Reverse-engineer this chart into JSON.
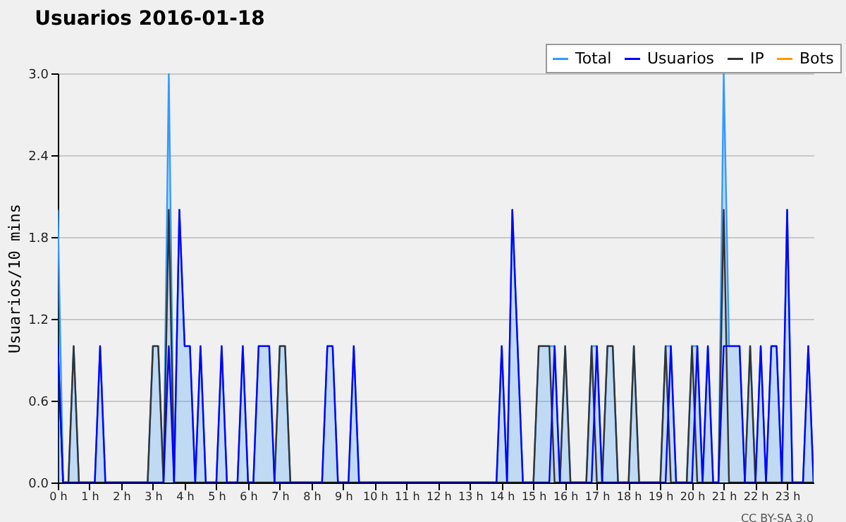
{
  "chart_data": {
    "type": "line",
    "title": "Usuarios  2016-01-18",
    "ylabel": "Usuarios/10 mins",
    "x": [
      "2016-01-18T00:00",
      "2016-01-18T00:10",
      "2016-01-18T00:20",
      "2016-01-18T00:30",
      "2016-01-18T00:40",
      "2016-01-18T00:50",
      "2016-01-18T01:00",
      "2016-01-18T01:10",
      "2016-01-18T01:20",
      "2016-01-18T01:30",
      "2016-01-18T01:40",
      "2016-01-18T01:50",
      "2016-01-18T02:00",
      "2016-01-18T02:10",
      "2016-01-18T02:20",
      "2016-01-18T02:30",
      "2016-01-18T02:40",
      "2016-01-18T02:50",
      "2016-01-18T03:00",
      "2016-01-18T03:10",
      "2016-01-18T03:20",
      "2016-01-18T03:30",
      "2016-01-18T03:40",
      "2016-01-18T03:50",
      "2016-01-18T04:00",
      "2016-01-18T04:10",
      "2016-01-18T04:20",
      "2016-01-18T04:30",
      "2016-01-18T04:40",
      "2016-01-18T04:50",
      "2016-01-18T05:00",
      "2016-01-18T05:10",
      "2016-01-18T05:20",
      "2016-01-18T05:30",
      "2016-01-18T05:40",
      "2016-01-18T05:50",
      "2016-01-18T06:00",
      "2016-01-18T06:10",
      "2016-01-18T06:20",
      "2016-01-18T06:30",
      "2016-01-18T06:40",
      "2016-01-18T06:50",
      "2016-01-18T07:00",
      "2016-01-18T07:10",
      "2016-01-18T07:20",
      "2016-01-18T07:30",
      "2016-01-18T07:40",
      "2016-01-18T07:50",
      "2016-01-18T08:00",
      "2016-01-18T08:10",
      "2016-01-18T08:20",
      "2016-01-18T08:30",
      "2016-01-18T08:40",
      "2016-01-18T08:50",
      "2016-01-18T09:00",
      "2016-01-18T09:10",
      "2016-01-18T09:20",
      "2016-01-18T09:30",
      "2016-01-18T09:40",
      "2016-01-18T09:50",
      "2016-01-18T10:00",
      "2016-01-18T10:10",
      "2016-01-18T10:20",
      "2016-01-18T10:30",
      "2016-01-18T10:40",
      "2016-01-18T10:50",
      "2016-01-18T11:00",
      "2016-01-18T11:10",
      "2016-01-18T11:20",
      "2016-01-18T11:30",
      "2016-01-18T11:40",
      "2016-01-18T11:50",
      "2016-01-18T12:00",
      "2016-01-18T12:10",
      "2016-01-18T12:20",
      "2016-01-18T12:30",
      "2016-01-18T12:40",
      "2016-01-18T12:50",
      "2016-01-18T13:00",
      "2016-01-18T13:10",
      "2016-01-18T13:20",
      "2016-01-18T13:30",
      "2016-01-18T13:40",
      "2016-01-18T13:50",
      "2016-01-18T14:00",
      "2016-01-18T14:10",
      "2016-01-18T14:20",
      "2016-01-18T14:30",
      "2016-01-18T14:40",
      "2016-01-18T14:50",
      "2016-01-18T15:00",
      "2016-01-18T15:10",
      "2016-01-18T15:20",
      "2016-01-18T15:30",
      "2016-01-18T15:40",
      "2016-01-18T15:50",
      "2016-01-18T16:00",
      "2016-01-18T16:10",
      "2016-01-18T16:20",
      "2016-01-18T16:30",
      "2016-01-18T16:40",
      "2016-01-18T16:50",
      "2016-01-18T17:00",
      "2016-01-18T17:10",
      "2016-01-18T17:20",
      "2016-01-18T17:30",
      "2016-01-18T17:40",
      "2016-01-18T17:50",
      "2016-01-18T18:00",
      "2016-01-18T18:10",
      "2016-01-18T18:20",
      "2016-01-18T18:30",
      "2016-01-18T18:40",
      "2016-01-18T18:50",
      "2016-01-18T19:00",
      "2016-01-18T19:10",
      "2016-01-18T19:20",
      "2016-01-18T19:30",
      "2016-01-18T19:40",
      "2016-01-18T19:50",
      "2016-01-18T20:00",
      "2016-01-18T20:10",
      "2016-01-18T20:20",
      "2016-01-18T20:30",
      "2016-01-18T20:40",
      "2016-01-18T20:50",
      "2016-01-18T21:00",
      "2016-01-18T21:10",
      "2016-01-18T21:20",
      "2016-01-18T21:30",
      "2016-01-18T21:40",
      "2016-01-18T21:50",
      "2016-01-18T22:00",
      "2016-01-18T22:10",
      "2016-01-18T22:20",
      "2016-01-18T22:30",
      "2016-01-18T22:40",
      "2016-01-18T22:50",
      "2016-01-18T23:00",
      "2016-01-18T23:10",
      "2016-01-18T23:20",
      "2016-01-18T23:30",
      "2016-01-18T23:40",
      "2016-01-18T23:50"
    ],
    "xlim": [
      "2016-01-18T00:00",
      "2016-01-18T23:50"
    ],
    "xticks": [
      {
        "value": "2016-01-18T00:00",
        "label": "0 h"
      },
      {
        "value": "2016-01-18T01:00",
        "label": "1 h"
      },
      {
        "value": "2016-01-18T02:00",
        "label": "2 h"
      },
      {
        "value": "2016-01-18T03:00",
        "label": "3 h"
      },
      {
        "value": "2016-01-18T04:00",
        "label": "4 h"
      },
      {
        "value": "2016-01-18T05:00",
        "label": "5 h"
      },
      {
        "value": "2016-01-18T06:00",
        "label": "6 h"
      },
      {
        "value": "2016-01-18T07:00",
        "label": "7 h"
      },
      {
        "value": "2016-01-18T08:00",
        "label": "8 h"
      },
      {
        "value": "2016-01-18T09:00",
        "label": "9 h"
      },
      {
        "value": "2016-01-18T10:00",
        "label": "10 h"
      },
      {
        "value": "2016-01-18T11:00",
        "label": "11 h"
      },
      {
        "value": "2016-01-18T12:00",
        "label": "12 h"
      },
      {
        "value": "2016-01-18T13:00",
        "label": "13 h"
      },
      {
        "value": "2016-01-18T14:00",
        "label": "14 h"
      },
      {
        "value": "2016-01-18T15:00",
        "label": "15 h"
      },
      {
        "value": "2016-01-18T16:00",
        "label": "16 h"
      },
      {
        "value": "2016-01-18T17:00",
        "label": "17 h"
      },
      {
        "value": "2016-01-18T18:00",
        "label": "18 h"
      },
      {
        "value": "2016-01-18T19:00",
        "label": "19 h"
      },
      {
        "value": "2016-01-18T20:00",
        "label": "20 h"
      },
      {
        "value": "2016-01-18T21:00",
        "label": "21 h"
      },
      {
        "value": "2016-01-18T22:00",
        "label": "22 h"
      },
      {
        "value": "2016-01-18T23:00",
        "label": "23 h"
      }
    ],
    "ylim": [
      0,
      3
    ],
    "yticks": [
      {
        "value": 0,
        "label": "0.0"
      },
      0.6,
      1.2,
      1.8,
      2.4,
      {
        "value": 3,
        "label": "3.0"
      }
    ],
    "grid": "y",
    "legend": "top right",
    "series": [
      {
        "name": "Total",
        "color": "#3399ff",
        "type": "area",
        "values": [
          2,
          0,
          0,
          1,
          0,
          0,
          0,
          0,
          1,
          0,
          0,
          0,
          0,
          0,
          0,
          0,
          0,
          0,
          1,
          1,
          0,
          3,
          0,
          2,
          1,
          1,
          0,
          1,
          0,
          0,
          0,
          1,
          0,
          0,
          0,
          1,
          0,
          0,
          1,
          1,
          1,
          0,
          1,
          1,
          0,
          0,
          0,
          0,
          0,
          0,
          0,
          1,
          1,
          0,
          0,
          0,
          1,
          0,
          0,
          0,
          0,
          0,
          0,
          0,
          0,
          0,
          0,
          0,
          0,
          0,
          0,
          0,
          0,
          0,
          0,
          0,
          0,
          0,
          0,
          0,
          0,
          0,
          0,
          0,
          1,
          0,
          2,
          1,
          0,
          0,
          0,
          1,
          1,
          1,
          1,
          0,
          1,
          0,
          0,
          0,
          0,
          1,
          1,
          0,
          1,
          1,
          0,
          0,
          0,
          1,
          0,
          0,
          0,
          0,
          0,
          1,
          1,
          0,
          0,
          0,
          1,
          1,
          0,
          1,
          0,
          0,
          3,
          1,
          1,
          1,
          0,
          1,
          0,
          1,
          0,
          1,
          1,
          0,
          2,
          0,
          0,
          0,
          1,
          0
        ]
      },
      {
        "name": "Usuarios",
        "color": "#0000ff",
        "values": [
          1,
          0,
          0,
          0,
          0,
          0,
          0,
          0,
          1,
          0,
          0,
          0,
          0,
          0,
          0,
          0,
          0,
          0,
          0,
          0,
          0,
          1,
          0,
          2,
          1,
          1,
          0,
          1,
          0,
          0,
          0,
          1,
          0,
          0,
          0,
          1,
          0,
          0,
          1,
          1,
          1,
          0,
          0,
          0,
          0,
          0,
          0,
          0,
          0,
          0,
          0,
          1,
          1,
          0,
          0,
          0,
          1,
          0,
          0,
          0,
          0,
          0,
          0,
          0,
          0,
          0,
          0,
          0,
          0,
          0,
          0,
          0,
          0,
          0,
          0,
          0,
          0,
          0,
          0,
          0,
          0,
          0,
          0,
          0,
          1,
          0,
          2,
          1,
          0,
          0,
          0,
          0,
          0,
          0,
          1,
          0,
          0,
          0,
          0,
          0,
          0,
          0,
          1,
          0,
          0,
          0,
          0,
          0,
          0,
          0,
          0,
          0,
          0,
          0,
          0,
          0,
          1,
          0,
          0,
          0,
          0,
          1,
          0,
          1,
          0,
          0,
          1,
          1,
          1,
          1,
          0,
          0,
          0,
          1,
          0,
          1,
          1,
          0,
          2,
          0,
          0,
          0,
          1,
          0
        ]
      },
      {
        "name": "IP",
        "color": "#333333",
        "values": [
          1,
          0,
          0,
          1,
          0,
          0,
          0,
          0,
          0,
          0,
          0,
          0,
          0,
          0,
          0,
          0,
          0,
          0,
          1,
          1,
          0,
          2,
          0,
          0,
          0,
          0,
          0,
          0,
          0,
          0,
          0,
          0,
          0,
          0,
          0,
          0,
          0,
          0,
          0,
          0,
          0,
          0,
          1,
          1,
          0,
          0,
          0,
          0,
          0,
          0,
          0,
          0,
          0,
          0,
          0,
          0,
          0,
          0,
          0,
          0,
          0,
          0,
          0,
          0,
          0,
          0,
          0,
          0,
          0,
          0,
          0,
          0,
          0,
          0,
          0,
          0,
          0,
          0,
          0,
          0,
          0,
          0,
          0,
          0,
          0,
          0,
          0,
          0,
          0,
          0,
          0,
          1,
          1,
          1,
          0,
          0,
          1,
          0,
          0,
          0,
          0,
          1,
          0,
          0,
          1,
          1,
          0,
          0,
          0,
          1,
          0,
          0,
          0,
          0,
          0,
          1,
          0,
          0,
          0,
          0,
          1,
          0,
          0,
          0,
          0,
          0,
          2,
          0,
          0,
          0,
          0,
          1,
          0,
          0,
          0,
          0,
          0,
          0,
          0,
          0,
          0,
          0,
          0,
          0
        ]
      },
      {
        "name": "Bots",
        "color": "#ff9900",
        "values": [
          null,
          null,
          null,
          null,
          null,
          null,
          null,
          null,
          null,
          null,
          null,
          null,
          null,
          null,
          null,
          null,
          null,
          null,
          null,
          null,
          null,
          null,
          null,
          null,
          null,
          null,
          null,
          null,
          null,
          null,
          null,
          null,
          null,
          null,
          null,
          null,
          null,
          null,
          null,
          null,
          null,
          null,
          null,
          null,
          null,
          null,
          null,
          null,
          null,
          null,
          null,
          null,
          null,
          null,
          null,
          null,
          null,
          null,
          null,
          null,
          null,
          null,
          null,
          null,
          null,
          null,
          null,
          null,
          null,
          null,
          null,
          null,
          null,
          null,
          null,
          null,
          null,
          null,
          null,
          null,
          null,
          null,
          null,
          null,
          null,
          null,
          null,
          null,
          null,
          null,
          null,
          null,
          null,
          null,
          null,
          null,
          null,
          null,
          null,
          null,
          null,
          null,
          null,
          null,
          null,
          null,
          null,
          null,
          null,
          null,
          null,
          null,
          null,
          null,
          null,
          null,
          null,
          null,
          null,
          null,
          null,
          null,
          null,
          null,
          null,
          null,
          null,
          null,
          null,
          null,
          null,
          null,
          null,
          null,
          null,
          null,
          null,
          null,
          null,
          null,
          null,
          null,
          null,
          null
        ]
      }
    ],
    "annotations": [
      "CC BY-SA 3.0"
    ]
  }
}
